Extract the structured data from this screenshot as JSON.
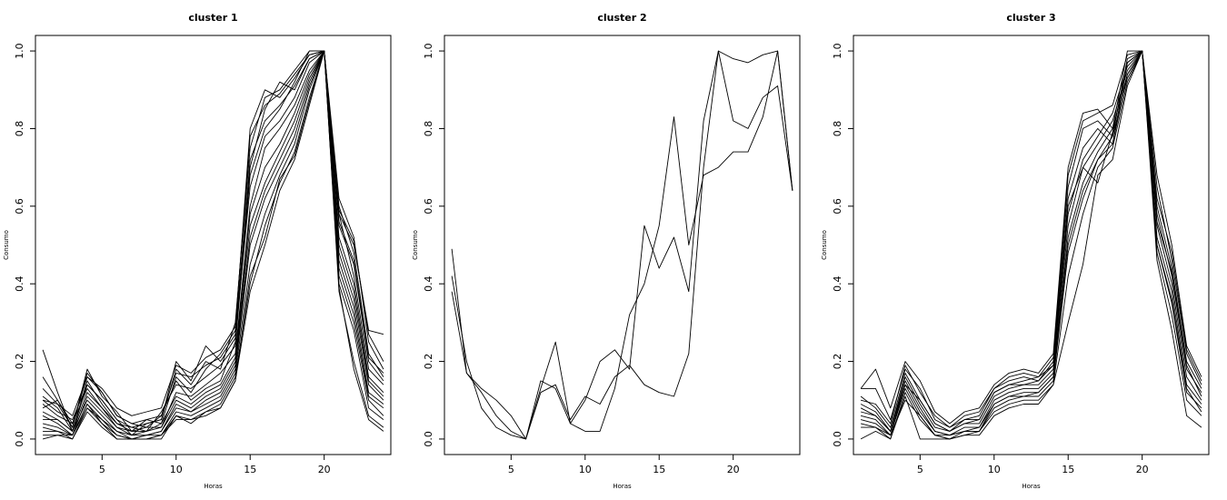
{
  "chart_data": [
    {
      "type": "line",
      "title": "cluster 1",
      "xlabel": "Horas",
      "ylabel": "Consumo",
      "xlim": [
        0.5,
        24.5
      ],
      "ylim": [
        -0.04,
        1.04
      ],
      "xticks": [
        5,
        10,
        15,
        20
      ],
      "yticks": [
        0.0,
        0.2,
        0.4,
        0.6,
        0.8,
        1.0
      ],
      "x": [
        1,
        2,
        3,
        4,
        5,
        6,
        7,
        8,
        9,
        10,
        11,
        12,
        13,
        14,
        15,
        16,
        17,
        18,
        19,
        20,
        21,
        22,
        23,
        24
      ],
      "series": [
        {
          "values": [
            0.23,
            0.12,
            0.02,
            0.14,
            0.1,
            0.05,
            0.03,
            0.04,
            0.05,
            0.18,
            0.14,
            0.2,
            0.18,
            0.3,
            0.75,
            0.88,
            0.9,
            0.95,
            1.0,
            1.0,
            0.58,
            0.5,
            0.28,
            0.27
          ]
        },
        {
          "values": [
            0.16,
            0.1,
            0.04,
            0.16,
            0.12,
            0.06,
            0.04,
            0.03,
            0.06,
            0.15,
            0.1,
            0.13,
            0.15,
            0.25,
            0.7,
            0.85,
            0.92,
            0.9,
            0.98,
            1.0,
            0.62,
            0.52,
            0.25,
            0.18
          ]
        },
        {
          "values": [
            0.13,
            0.09,
            0.03,
            0.18,
            0.11,
            0.07,
            0.02,
            0.05,
            0.04,
            0.16,
            0.12,
            0.18,
            0.22,
            0.28,
            0.8,
            0.9,
            0.88,
            0.93,
            0.99,
            1.0,
            0.6,
            0.48,
            0.22,
            0.16
          ]
        },
        {
          "values": [
            0.11,
            0.08,
            0.02,
            0.15,
            0.09,
            0.04,
            0.03,
            0.02,
            0.07,
            0.14,
            0.13,
            0.16,
            0.19,
            0.24,
            0.68,
            0.8,
            0.85,
            0.92,
            1.0,
            1.0,
            0.55,
            0.45,
            0.2,
            0.15
          ]
        },
        {
          "values": [
            0.1,
            0.07,
            0.05,
            0.14,
            0.1,
            0.05,
            0.01,
            0.04,
            0.05,
            0.2,
            0.15,
            0.24,
            0.2,
            0.26,
            0.65,
            0.78,
            0.82,
            0.88,
            0.97,
            1.0,
            0.58,
            0.42,
            0.18,
            0.14
          ]
        },
        {
          "values": [
            0.09,
            0.06,
            0.04,
            0.13,
            0.08,
            0.03,
            0.02,
            0.03,
            0.03,
            0.12,
            0.11,
            0.14,
            0.17,
            0.22,
            0.6,
            0.75,
            0.8,
            0.86,
            0.95,
            1.0,
            0.52,
            0.4,
            0.16,
            0.12
          ]
        },
        {
          "values": [
            0.08,
            0.1,
            0.03,
            0.17,
            0.12,
            0.06,
            0.04,
            0.05,
            0.06,
            0.17,
            0.16,
            0.19,
            0.21,
            0.27,
            0.72,
            0.82,
            0.86,
            0.91,
            0.98,
            1.0,
            0.56,
            0.46,
            0.21,
            0.17
          ]
        },
        {
          "values": [
            0.07,
            0.05,
            0.02,
            0.12,
            0.08,
            0.04,
            0.02,
            0.02,
            0.04,
            0.11,
            0.09,
            0.12,
            0.14,
            0.21,
            0.58,
            0.7,
            0.76,
            0.84,
            0.94,
            1.0,
            0.5,
            0.38,
            0.15,
            0.11
          ]
        },
        {
          "values": [
            0.06,
            0.04,
            0.01,
            0.11,
            0.07,
            0.03,
            0.01,
            0.02,
            0.03,
            0.1,
            0.08,
            0.11,
            0.13,
            0.2,
            0.55,
            0.66,
            0.74,
            0.82,
            0.93,
            1.0,
            0.48,
            0.36,
            0.14,
            0.1
          ]
        },
        {
          "values": [
            0.05,
            0.05,
            0.02,
            0.1,
            0.06,
            0.02,
            0.01,
            0.01,
            0.02,
            0.09,
            0.07,
            0.1,
            0.12,
            0.19,
            0.52,
            0.64,
            0.72,
            0.8,
            0.92,
            1.0,
            0.46,
            0.34,
            0.12,
            0.09
          ]
        },
        {
          "values": [
            0.04,
            0.03,
            0.01,
            0.09,
            0.05,
            0.02,
            0.0,
            0.01,
            0.02,
            0.08,
            0.07,
            0.09,
            0.11,
            0.18,
            0.5,
            0.62,
            0.7,
            0.78,
            0.91,
            1.0,
            0.44,
            0.32,
            0.11,
            0.08
          ]
        },
        {
          "values": [
            0.03,
            0.02,
            0.0,
            0.08,
            0.05,
            0.01,
            0.0,
            0.0,
            0.01,
            0.07,
            0.06,
            0.08,
            0.1,
            0.17,
            0.45,
            0.58,
            0.68,
            0.76,
            0.9,
            1.0,
            0.42,
            0.3,
            0.1,
            0.06
          ]
        },
        {
          "values": [
            0.02,
            0.02,
            0.01,
            0.09,
            0.04,
            0.01,
            0.0,
            0.01,
            0.01,
            0.06,
            0.05,
            0.07,
            0.09,
            0.16,
            0.4,
            0.55,
            0.66,
            0.74,
            0.88,
            1.0,
            0.4,
            0.28,
            0.08,
            0.05
          ]
        },
        {
          "values": [
            0.01,
            0.01,
            0.0,
            0.07,
            0.03,
            0.0,
            0.0,
            0.0,
            0.01,
            0.05,
            0.05,
            0.06,
            0.08,
            0.15,
            0.38,
            0.5,
            0.64,
            0.72,
            0.86,
            1.0,
            0.38,
            0.2,
            0.06,
            0.03
          ]
        },
        {
          "values": [
            0.1,
            0.09,
            0.06,
            0.16,
            0.13,
            0.08,
            0.06,
            0.07,
            0.08,
            0.19,
            0.17,
            0.21,
            0.23,
            0.29,
            0.78,
            0.86,
            0.89,
            0.94,
            0.99,
            1.0,
            0.59,
            0.51,
            0.27,
            0.2
          ]
        },
        {
          "values": [
            0.0,
            0.01,
            0.01,
            0.08,
            0.04,
            0.0,
            0.0,
            0.0,
            0.0,
            0.06,
            0.04,
            0.07,
            0.08,
            0.15,
            0.42,
            0.52,
            0.67,
            0.73,
            0.87,
            1.0,
            0.39,
            0.18,
            0.05,
            0.02
          ]
        }
      ]
    },
    {
      "type": "line",
      "title": "cluster 2",
      "xlabel": "Horas",
      "ylabel": "Consumo",
      "xlim": [
        0.5,
        24.5
      ],
      "ylim": [
        -0.04,
        1.04
      ],
      "xticks": [
        5,
        10,
        15,
        20
      ],
      "yticks": [
        0.0,
        0.2,
        0.4,
        0.6,
        0.8,
        1.0
      ],
      "x": [
        1,
        2,
        3,
        4,
        5,
        6,
        7,
        8,
        9,
        10,
        11,
        12,
        13,
        14,
        15,
        16,
        17,
        18,
        19,
        20,
        21,
        22,
        23,
        24
      ],
      "series": [
        {
          "values": [
            0.49,
            0.17,
            0.13,
            0.1,
            0.06,
            0.0,
            0.13,
            0.25,
            0.04,
            0.1,
            0.2,
            0.23,
            0.18,
            0.55,
            0.44,
            0.52,
            0.38,
            0.82,
            1.0,
            0.82,
            0.8,
            0.88,
            0.91,
            0.64
          ]
        },
        {
          "values": [
            0.42,
            0.2,
            0.08,
            0.03,
            0.01,
            0.0,
            0.15,
            0.13,
            0.04,
            0.02,
            0.02,
            0.13,
            0.32,
            0.4,
            0.55,
            0.83,
            0.5,
            0.68,
            0.7,
            0.74,
            0.74,
            0.83,
            1.0,
            0.64
          ]
        },
        {
          "values": [
            0.38,
            0.17,
            0.12,
            0.06,
            0.02,
            0.0,
            0.12,
            0.14,
            0.05,
            0.11,
            0.09,
            0.16,
            0.19,
            0.14,
            0.12,
            0.11,
            0.22,
            0.7,
            1.0,
            0.98,
            0.97,
            0.99,
            1.0,
            0.64
          ]
        }
      ]
    },
    {
      "type": "line",
      "title": "cluster 3",
      "xlabel": "Horas",
      "ylabel": "Consumo",
      "xlim": [
        0.5,
        24.5
      ],
      "ylim": [
        -0.04,
        1.04
      ],
      "xticks": [
        5,
        10,
        15,
        20
      ],
      "yticks": [
        0.0,
        0.2,
        0.4,
        0.6,
        0.8,
        1.0
      ],
      "x": [
        1,
        2,
        3,
        4,
        5,
        6,
        7,
        8,
        9,
        10,
        11,
        12,
        13,
        14,
        15,
        16,
        17,
        18,
        19,
        20,
        21,
        22,
        23,
        24
      ],
      "series": [
        {
          "values": [
            0.13,
            0.18,
            0.08,
            0.2,
            0.15,
            0.07,
            0.04,
            0.07,
            0.08,
            0.14,
            0.17,
            0.18,
            0.17,
            0.22,
            0.7,
            0.84,
            0.85,
            0.8,
            1.0,
            1.0,
            0.68,
            0.5,
            0.24,
            0.16
          ]
        },
        {
          "values": [
            0.13,
            0.13,
            0.05,
            0.18,
            0.13,
            0.05,
            0.03,
            0.06,
            0.07,
            0.13,
            0.15,
            0.16,
            0.15,
            0.2,
            0.65,
            0.8,
            0.82,
            0.78,
            0.98,
            1.0,
            0.65,
            0.46,
            0.22,
            0.14
          ]
        },
        {
          "values": [
            0.11,
            0.08,
            0.03,
            0.17,
            0.1,
            0.04,
            0.02,
            0.05,
            0.05,
            0.12,
            0.14,
            0.15,
            0.16,
            0.19,
            0.62,
            0.75,
            0.8,
            0.76,
            0.97,
            1.0,
            0.6,
            0.44,
            0.2,
            0.13
          ]
        },
        {
          "values": [
            0.09,
            0.07,
            0.02,
            0.16,
            0.09,
            0.03,
            0.02,
            0.04,
            0.04,
            0.11,
            0.13,
            0.14,
            0.14,
            0.18,
            0.58,
            0.72,
            0.78,
            0.84,
            0.96,
            1.0,
            0.58,
            0.42,
            0.18,
            0.12
          ]
        },
        {
          "values": [
            0.07,
            0.06,
            0.02,
            0.15,
            0.08,
            0.02,
            0.01,
            0.03,
            0.03,
            0.1,
            0.12,
            0.13,
            0.13,
            0.17,
            0.55,
            0.7,
            0.76,
            0.82,
            0.95,
            1.0,
            0.55,
            0.4,
            0.16,
            0.1
          ]
        },
        {
          "values": [
            0.06,
            0.05,
            0.01,
            0.14,
            0.07,
            0.02,
            0.01,
            0.02,
            0.03,
            0.09,
            0.11,
            0.12,
            0.12,
            0.16,
            0.52,
            0.66,
            0.74,
            0.8,
            0.94,
            1.0,
            0.52,
            0.38,
            0.14,
            0.09
          ]
        },
        {
          "values": [
            0.05,
            0.04,
            0.01,
            0.13,
            0.06,
            0.01,
            0.0,
            0.02,
            0.02,
            0.08,
            0.1,
            0.11,
            0.11,
            0.15,
            0.48,
            0.62,
            0.72,
            0.78,
            0.93,
            1.0,
            0.5,
            0.35,
            0.12,
            0.08
          ]
        },
        {
          "values": [
            0.04,
            0.03,
            0.0,
            0.12,
            0.05,
            0.01,
            0.0,
            0.01,
            0.02,
            0.07,
            0.09,
            0.1,
            0.1,
            0.14,
            0.42,
            0.58,
            0.7,
            0.75,
            0.92,
            1.0,
            0.48,
            0.32,
            0.1,
            0.06
          ]
        },
        {
          "values": [
            0.0,
            0.02,
            0.0,
            0.11,
            0.0,
            0.0,
            0.0,
            0.01,
            0.01,
            0.06,
            0.08,
            0.09,
            0.09,
            0.14,
            0.3,
            0.45,
            0.68,
            0.72,
            0.91,
            1.0,
            0.46,
            0.28,
            0.06,
            0.03
          ]
        },
        {
          "values": [
            0.1,
            0.09,
            0.04,
            0.19,
            0.12,
            0.06,
            0.03,
            0.05,
            0.06,
            0.13,
            0.16,
            0.17,
            0.16,
            0.21,
            0.68,
            0.82,
            0.84,
            0.86,
            0.99,
            1.0,
            0.62,
            0.48,
            0.23,
            0.15
          ]
        },
        {
          "values": [
            0.08,
            0.06,
            0.02,
            0.14,
            0.1,
            0.04,
            0.02,
            0.04,
            0.05,
            0.12,
            0.14,
            0.14,
            0.15,
            0.19,
            0.6,
            0.7,
            0.66,
            0.79,
            0.97,
            1.0,
            0.56,
            0.43,
            0.19,
            0.11
          ]
        },
        {
          "values": [
            0.03,
            0.03,
            0.01,
            0.1,
            0.06,
            0.01,
            0.01,
            0.02,
            0.02,
            0.09,
            0.11,
            0.11,
            0.12,
            0.16,
            0.5,
            0.64,
            0.72,
            0.76,
            0.94,
            1.0,
            0.5,
            0.36,
            0.13,
            0.07
          ]
        }
      ]
    }
  ]
}
